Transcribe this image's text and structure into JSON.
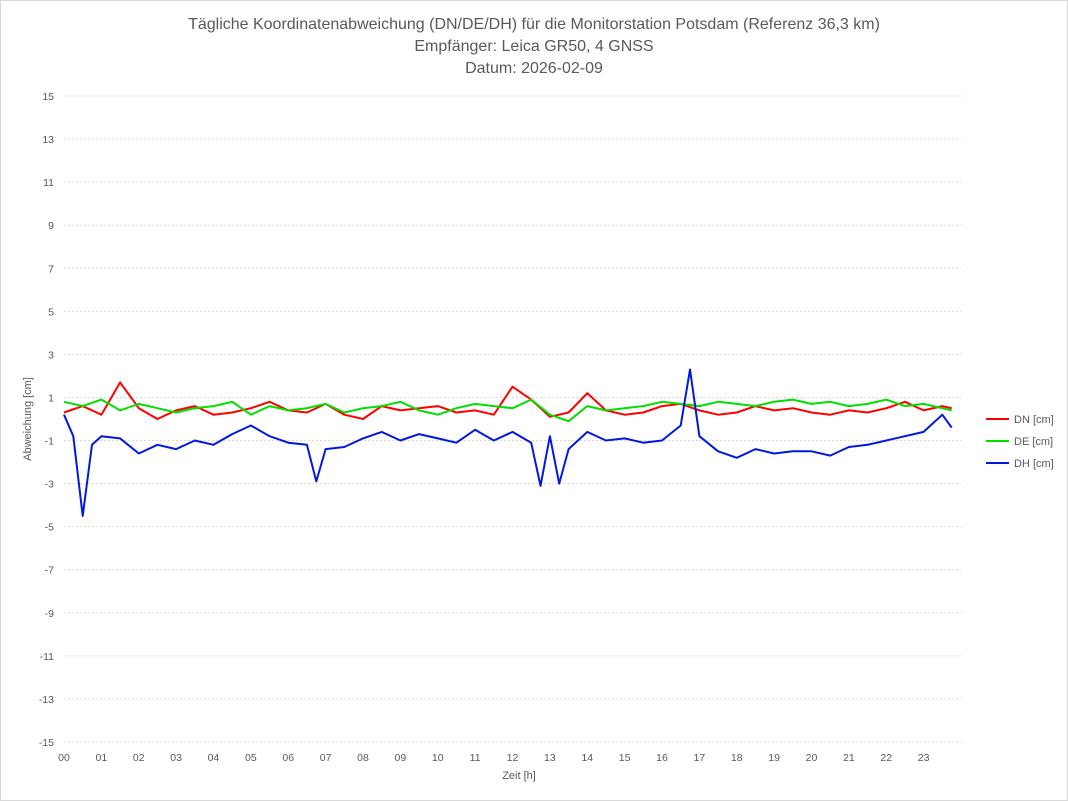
{
  "chart_data": {
    "type": "line",
    "title_lines": [
      "Tägliche Koordinatenabweichung (DN/DE/DH) für die Monitorstation Potsdam (Referenz 36,3 km)",
      "Empfänger: Leica GR50, 4 GNSS",
      "Datum: 2026-02-09"
    ],
    "xlabel": "Zeit [h]",
    "ylabel": "Abweichung [cm]",
    "ylim": [
      -15,
      15
    ],
    "yticks": [
      15,
      13,
      11,
      9,
      7,
      5,
      3,
      1,
      -1,
      -3,
      -5,
      -7,
      -9,
      -11,
      -13,
      -15
    ],
    "xlim": [
      0,
      24
    ],
    "xticks": [
      0,
      1,
      2,
      3,
      4,
      5,
      6,
      7,
      8,
      9,
      10,
      11,
      12,
      13,
      14,
      15,
      16,
      17,
      18,
      19,
      20,
      21,
      22,
      23
    ],
    "xtick_labels": [
      "00",
      "01",
      "02",
      "03",
      "04",
      "05",
      "06",
      "07",
      "08",
      "09",
      "10",
      "11",
      "12",
      "13",
      "14",
      "15",
      "16",
      "17",
      "18",
      "19",
      "20",
      "21",
      "22",
      "23"
    ],
    "grid": "horizontal dotted",
    "legend_position": "right",
    "series": [
      {
        "name": "DN [cm]",
        "color": "#ff0000",
        "x": [
          0.0,
          0.5,
          1.0,
          1.5,
          2.0,
          2.5,
          3.0,
          3.5,
          4.0,
          4.5,
          5.0,
          5.5,
          6.0,
          6.5,
          7.0,
          7.5,
          8.0,
          8.5,
          9.0,
          9.5,
          10.0,
          10.5,
          11.0,
          11.5,
          12.0,
          12.5,
          13.0,
          13.5,
          14.0,
          14.5,
          15.0,
          15.5,
          16.0,
          16.5,
          17.0,
          17.5,
          18.0,
          18.5,
          19.0,
          19.5,
          20.0,
          20.5,
          21.0,
          21.5,
          22.0,
          22.5,
          23.0,
          23.5,
          23.75
        ],
        "values": [
          0.3,
          0.6,
          0.2,
          1.7,
          0.5,
          0.0,
          0.4,
          0.6,
          0.2,
          0.3,
          0.5,
          0.8,
          0.4,
          0.3,
          0.7,
          0.2,
          0.0,
          0.6,
          0.4,
          0.5,
          0.6,
          0.3,
          0.4,
          0.2,
          1.5,
          0.9,
          0.1,
          0.3,
          1.2,
          0.4,
          0.2,
          0.3,
          0.6,
          0.7,
          0.4,
          0.2,
          0.3,
          0.6,
          0.4,
          0.5,
          0.3,
          0.2,
          0.4,
          0.3,
          0.5,
          0.8,
          0.4,
          0.6,
          0.5
        ]
      },
      {
        "name": "DE [cm]",
        "color": "#00e000",
        "x": [
          0.0,
          0.5,
          1.0,
          1.5,
          2.0,
          2.5,
          3.0,
          3.5,
          4.0,
          4.5,
          5.0,
          5.5,
          6.0,
          6.5,
          7.0,
          7.5,
          8.0,
          8.5,
          9.0,
          9.5,
          10.0,
          10.5,
          11.0,
          11.5,
          12.0,
          12.5,
          13.0,
          13.5,
          14.0,
          14.5,
          15.0,
          15.5,
          16.0,
          16.5,
          17.0,
          17.5,
          18.0,
          18.5,
          19.0,
          19.5,
          20.0,
          20.5,
          21.0,
          21.5,
          22.0,
          22.5,
          23.0,
          23.5,
          23.75
        ],
        "values": [
          0.8,
          0.6,
          0.9,
          0.4,
          0.7,
          0.5,
          0.3,
          0.5,
          0.6,
          0.8,
          0.2,
          0.6,
          0.4,
          0.5,
          0.7,
          0.3,
          0.5,
          0.6,
          0.8,
          0.4,
          0.2,
          0.5,
          0.7,
          0.6,
          0.5,
          0.9,
          0.2,
          -0.1,
          0.6,
          0.4,
          0.5,
          0.6,
          0.8,
          0.7,
          0.6,
          0.8,
          0.7,
          0.6,
          0.8,
          0.9,
          0.7,
          0.8,
          0.6,
          0.7,
          0.9,
          0.6,
          0.7,
          0.5,
          0.4
        ]
      },
      {
        "name": "DH [cm]",
        "color": "#0018e0",
        "x": [
          0.0,
          0.25,
          0.5,
          0.75,
          1.0,
          1.5,
          2.0,
          2.5,
          3.0,
          3.5,
          4.0,
          4.5,
          5.0,
          5.5,
          6.0,
          6.5,
          6.75,
          7.0,
          7.5,
          8.0,
          8.5,
          9.0,
          9.5,
          10.0,
          10.5,
          11.0,
          11.5,
          12.0,
          12.5,
          12.75,
          13.0,
          13.25,
          13.5,
          14.0,
          14.5,
          15.0,
          15.5,
          16.0,
          16.5,
          16.75,
          17.0,
          17.5,
          18.0,
          18.5,
          19.0,
          19.5,
          20.0,
          20.5,
          21.0,
          21.5,
          22.0,
          22.5,
          23.0,
          23.5,
          23.75
        ],
        "values": [
          0.2,
          -0.8,
          -4.5,
          -1.2,
          -0.8,
          -0.9,
          -1.6,
          -1.2,
          -1.4,
          -1.0,
          -1.2,
          -0.7,
          -0.3,
          -0.8,
          -1.1,
          -1.2,
          -2.9,
          -1.4,
          -1.3,
          -0.9,
          -0.6,
          -1.0,
          -0.7,
          -0.9,
          -1.1,
          -0.5,
          -1.0,
          -0.6,
          -1.1,
          -3.1,
          -0.8,
          -3.0,
          -1.4,
          -0.6,
          -1.0,
          -0.9,
          -1.1,
          -1.0,
          -0.3,
          2.3,
          -0.8,
          -1.5,
          -1.8,
          -1.4,
          -1.6,
          -1.5,
          -1.5,
          -1.7,
          -1.3,
          -1.2,
          -1.0,
          -0.8,
          -0.6,
          0.2,
          -0.4
        ]
      }
    ]
  }
}
